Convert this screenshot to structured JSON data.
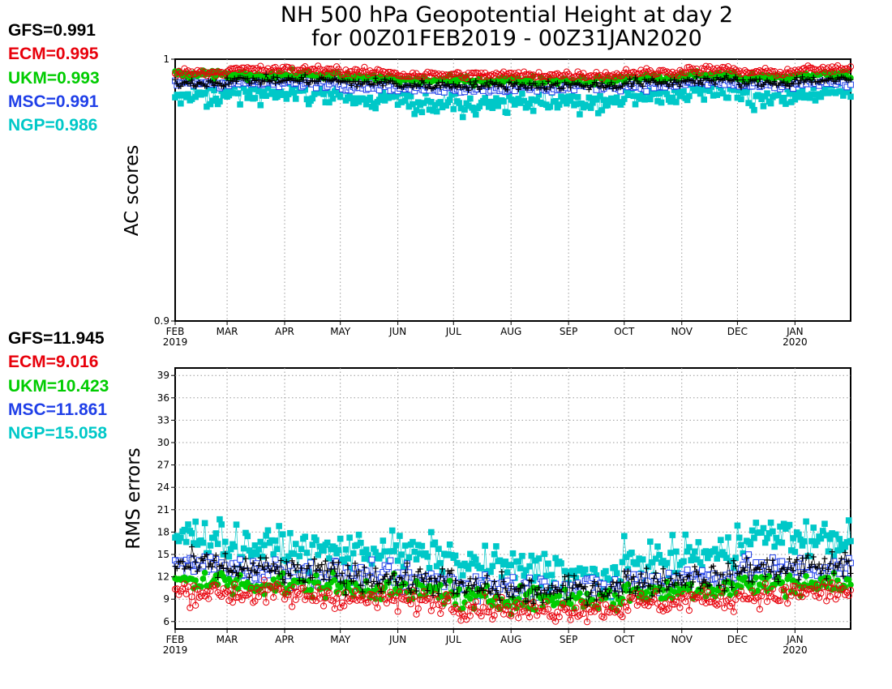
{
  "title": {
    "line1": "NH 500 hPa Geopotential Height at day 2",
    "line2": "for 00Z01FEB2019 - 00Z31JAN2020"
  },
  "colors": {
    "GFS": "#000000",
    "ECM": "#e8000b",
    "UKM": "#00cc00",
    "MSC": "#1f3fe8",
    "NGP": "#00c8c8",
    "grid": "#9a9a9a",
    "axis": "#000000"
  },
  "month_ticks": {
    "labels": [
      "FEB",
      "MAR",
      "APR",
      "MAY",
      "JUN",
      "JUL",
      "AUG",
      "SEP",
      "OCT",
      "NOV",
      "DEC",
      "JAN"
    ],
    "year_labels": [
      {
        "month": "FEB",
        "year": "2019"
      },
      {
        "month": "JAN",
        "year": "2020"
      }
    ]
  },
  "chart_data": [
    {
      "type": "scatter",
      "x_axis": {
        "range": [
          "2019-02-01",
          "2020-01-31"
        ],
        "ticks": [
          "2019-02-01",
          "2019-03-01",
          "2019-04-01",
          "2019-05-01",
          "2019-06-01",
          "2019-07-01",
          "2019-08-01",
          "2019-09-01",
          "2019-10-01",
          "2019-11-01",
          "2019-12-01",
          "2020-01-01"
        ]
      },
      "ylabel": "AC scores",
      "ylim": [
        0.9,
        1.0
      ],
      "yticks": [
        "0.9",
        "1"
      ],
      "grid": "vertical dotted at month starts",
      "legend_placement": "left",
      "series": [
        {
          "name": "GFS",
          "mean_label": "GFS=0.991",
          "mean": 0.991,
          "marker": "plus",
          "monthly_typical": [
            0.991,
            0.992,
            0.992,
            0.991,
            0.99,
            0.99,
            0.99,
            0.99,
            0.991,
            0.992,
            0.991,
            0.992
          ]
        },
        {
          "name": "ECM",
          "mean_label": "ECM=0.995",
          "mean": 0.995,
          "marker": "open-circle",
          "monthly_typical": [
            0.995,
            0.996,
            0.996,
            0.995,
            0.994,
            0.994,
            0.994,
            0.994,
            0.995,
            0.996,
            0.995,
            0.996
          ]
        },
        {
          "name": "UKM",
          "mean_label": "UKM=0.993",
          "mean": 0.993,
          "marker": "filled-circle",
          "monthly_typical": [
            0.994,
            0.994,
            0.994,
            0.993,
            0.992,
            0.992,
            0.992,
            0.992,
            0.993,
            0.994,
            0.993,
            0.994
          ]
        },
        {
          "name": "MSC",
          "mean_label": "MSC=0.991",
          "mean": 0.991,
          "marker": "open-square",
          "monthly_typical": [
            0.991,
            0.991,
            0.991,
            0.99,
            0.989,
            0.989,
            0.989,
            0.99,
            0.99,
            0.991,
            0.99,
            0.991
          ]
        },
        {
          "name": "NGP",
          "mean_label": "NGP=0.986",
          "mean": 0.986,
          "marker": "filled-square",
          "monthly_typical": [
            0.986,
            0.987,
            0.987,
            0.985,
            0.983,
            0.983,
            0.984,
            0.984,
            0.986,
            0.988,
            0.986,
            0.987
          ]
        }
      ]
    },
    {
      "type": "scatter",
      "x_axis": {
        "range": [
          "2019-02-01",
          "2020-01-31"
        ],
        "ticks": [
          "2019-02-01",
          "2019-03-01",
          "2019-04-01",
          "2019-05-01",
          "2019-06-01",
          "2019-07-01",
          "2019-08-01",
          "2019-09-01",
          "2019-10-01",
          "2019-11-01",
          "2019-12-01",
          "2020-01-01"
        ]
      },
      "ylabel": "RMS errors",
      "ylim": [
        5,
        40
      ],
      "yticks": [
        "6",
        "9",
        "12",
        "15",
        "18",
        "21",
        "24",
        "27",
        "30",
        "33",
        "36",
        "39"
      ],
      "grid": "dotted both axes",
      "legend_placement": "left",
      "series": [
        {
          "name": "GFS",
          "mean_label": "GFS=11.945",
          "mean": 11.945,
          "marker": "plus",
          "monthly_typical": [
            13.5,
            13.0,
            12.5,
            12.0,
            11.5,
            10.5,
            10.0,
            10.5,
            11.5,
            12.0,
            13.0,
            13.5
          ]
        },
        {
          "name": "ECM",
          "mean_label": "ECM=9.016",
          "mean": 9.016,
          "marker": "open-circle",
          "monthly_typical": [
            10.0,
            9.8,
            9.5,
            9.0,
            8.8,
            8.0,
            7.5,
            7.8,
            8.5,
            9.0,
            9.5,
            10.0
          ]
        },
        {
          "name": "UKM",
          "mean_label": "UKM=10.423",
          "mean": 10.423,
          "marker": "filled-circle",
          "monthly_typical": [
            11.5,
            11.0,
            10.8,
            10.5,
            10.0,
            9.0,
            9.0,
            9.0,
            10.0,
            10.5,
            11.0,
            11.0
          ]
        },
        {
          "name": "MSC",
          "mean_label": "MSC=11.861",
          "mean": 11.861,
          "marker": "open-square",
          "monthly_typical": [
            13.5,
            12.8,
            12.5,
            12.0,
            11.5,
            11.0,
            10.5,
            10.5,
            11.5,
            12.0,
            13.0,
            13.0
          ]
        },
        {
          "name": "NGP",
          "mean_label": "NGP=15.058",
          "mean": 15.058,
          "marker": "filled-square",
          "monthly_typical": [
            17.5,
            16.0,
            15.5,
            15.5,
            15.0,
            13.5,
            13.0,
            12.0,
            14.0,
            15.0,
            17.5,
            17.0
          ]
        }
      ]
    }
  ]
}
